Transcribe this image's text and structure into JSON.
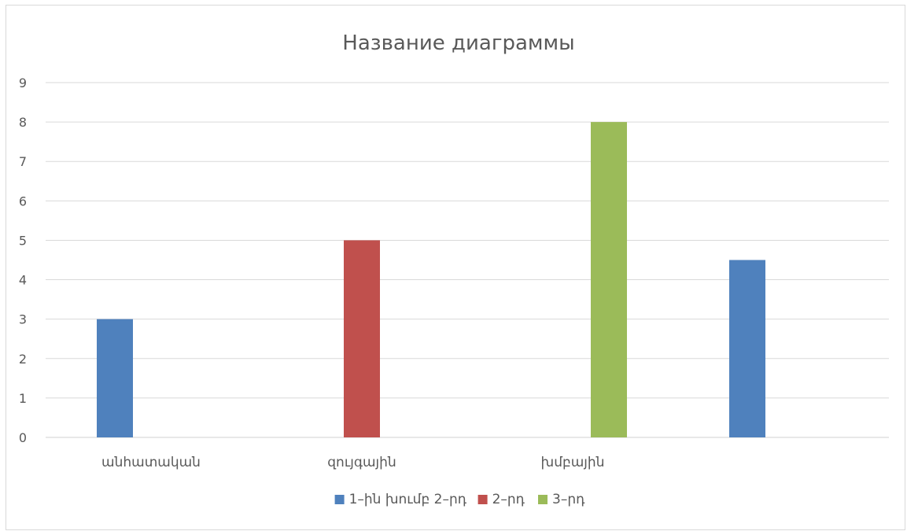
{
  "chart_data": {
    "type": "bar",
    "title": "Название диаграммы",
    "categories": [
      "անհատական",
      "զույգային",
      "խմբային",
      ""
    ],
    "series": [
      {
        "name": "1–ին խումբ 2–րդ",
        "color": "#4f81bd",
        "values": [
          3,
          null,
          null,
          4.5
        ]
      },
      {
        "name": "2–րդ",
        "color": "#c0504d",
        "values": [
          null,
          5,
          null,
          null
        ]
      },
      {
        "name": "3–րդ",
        "color": "#9bbb59",
        "values": [
          null,
          null,
          8,
          null
        ]
      }
    ],
    "xlabel": "",
    "ylabel": "",
    "ylim": [
      0,
      9
    ],
    "yticks": [
      "0",
      "1",
      "2",
      "3",
      "4",
      "5",
      "6",
      "7",
      "8",
      "9"
    ],
    "grid": true,
    "legend_position": "bottom"
  }
}
